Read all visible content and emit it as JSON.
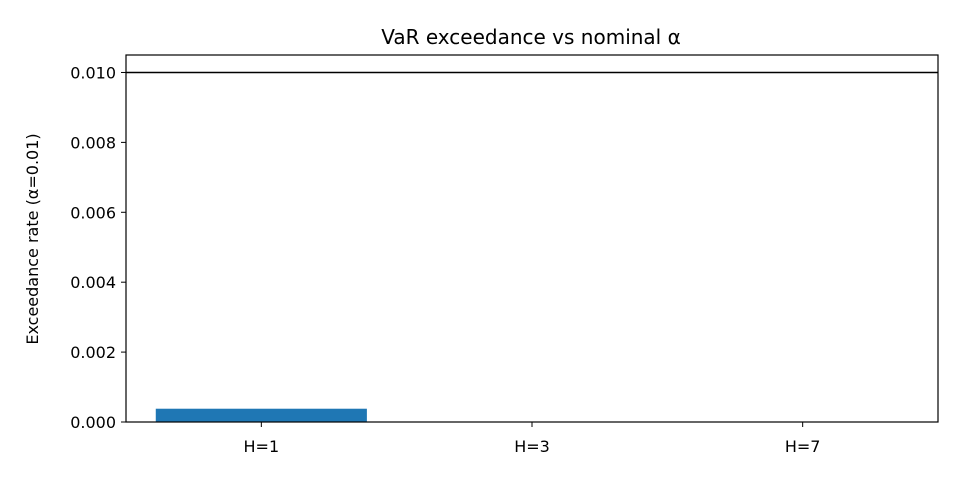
{
  "chart_data": {
    "type": "bar",
    "title": "VaR exceedance vs nominal α",
    "xlabel": "",
    "ylabel": "Exceedance rate (α=0.01)",
    "categories": [
      "H=1",
      "H=3",
      "H=7"
    ],
    "values": [
      0.00038,
      0.0,
      0.0
    ],
    "ylim": [
      0,
      0.0105
    ],
    "yticks": [
      0.0,
      0.002,
      0.004,
      0.006,
      0.008,
      0.01
    ],
    "ytick_labels": [
      "0.000",
      "0.002",
      "0.004",
      "0.006",
      "0.008",
      "0.010"
    ],
    "reference_line": 0.01,
    "bar_color": "#1f77b4",
    "reference_line_color": "#000000",
    "grid": false,
    "legend": false
  }
}
